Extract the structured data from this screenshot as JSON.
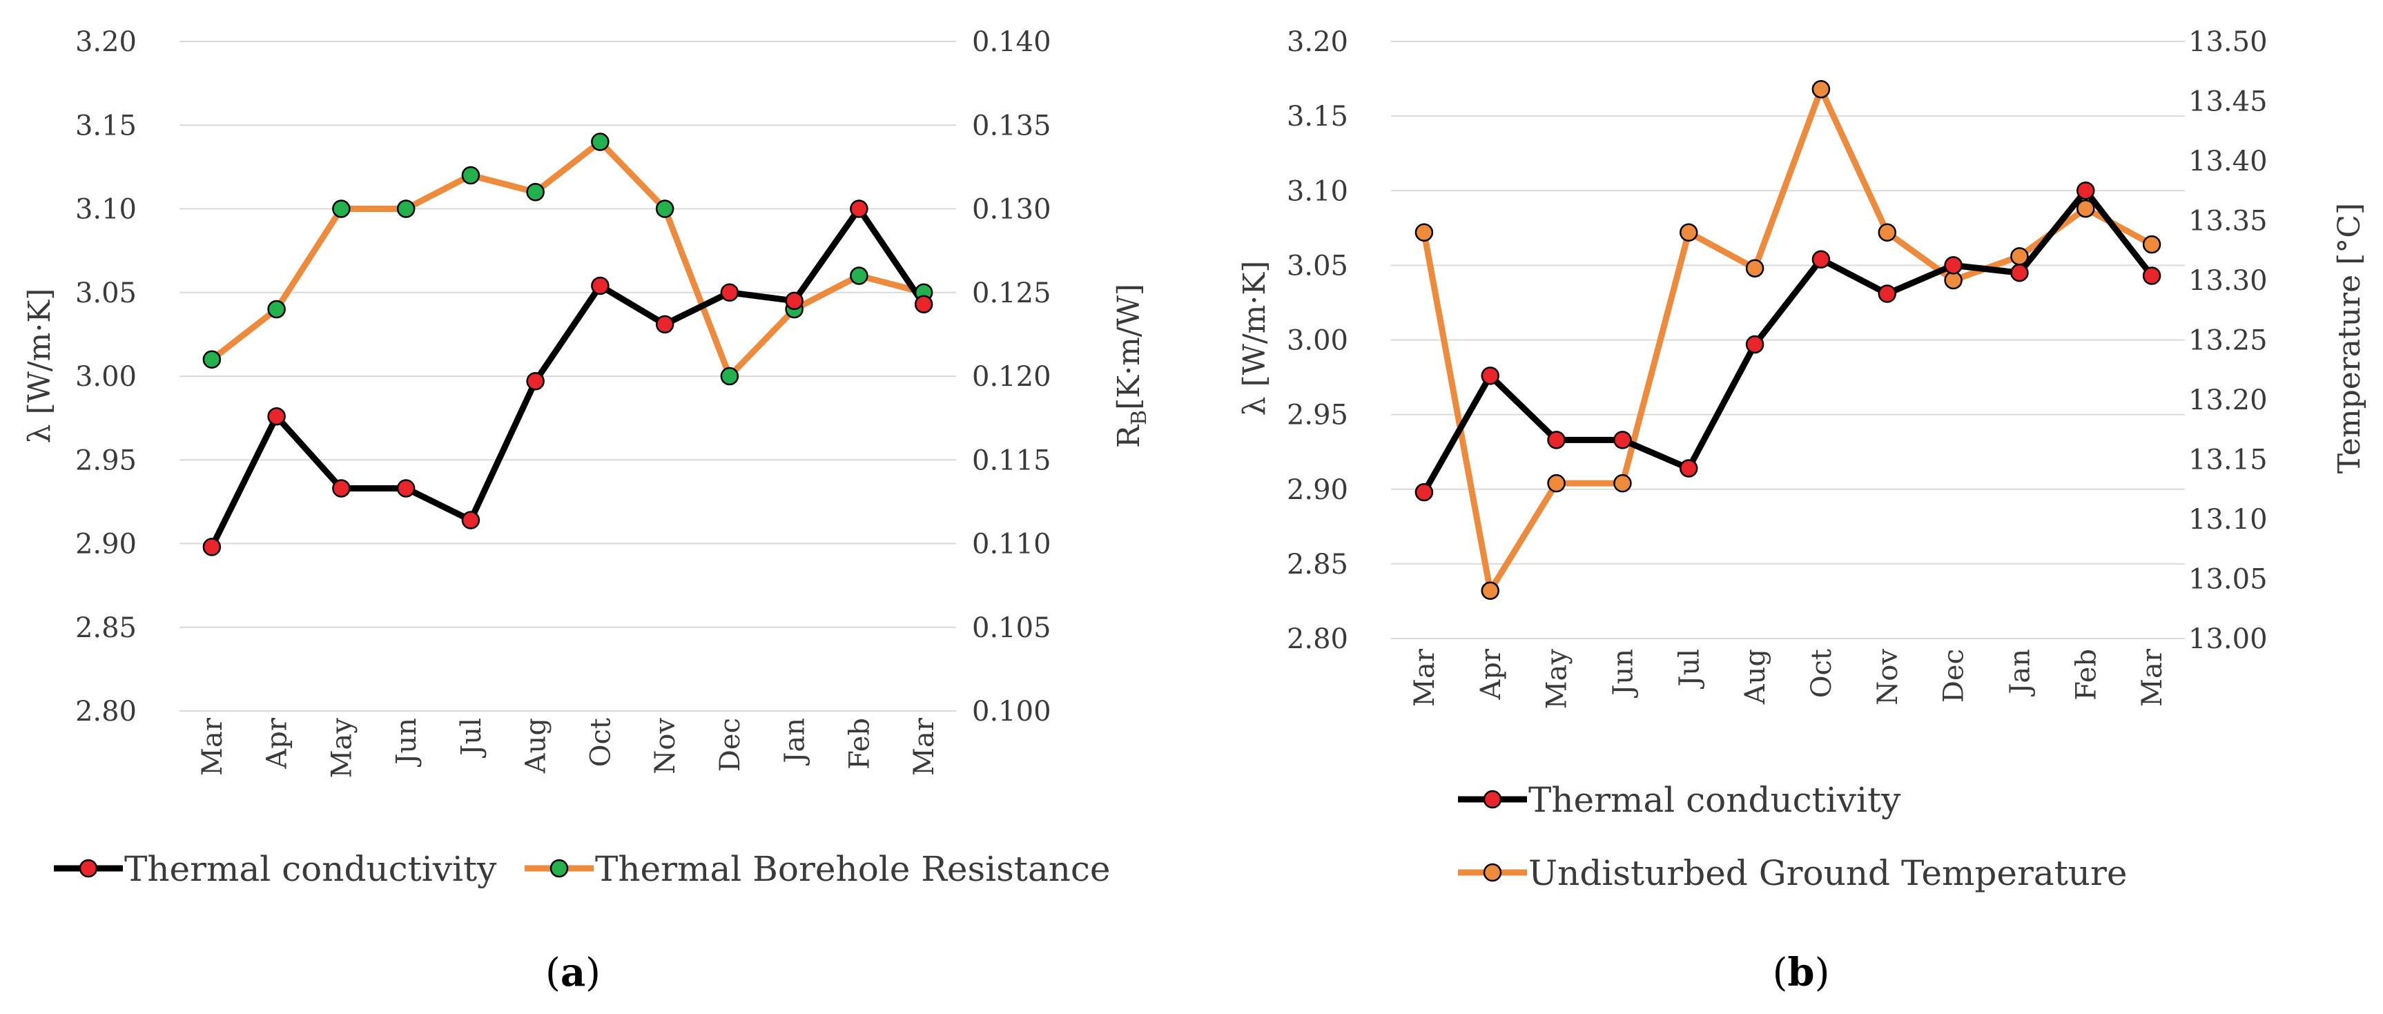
{
  "chart_data": [
    {
      "type": "line",
      "id": "a",
      "caption": "(a)",
      "caption_parts": {
        "open": "(",
        "letter": "a",
        "close": ")"
      },
      "categories": [
        "Mar",
        "Apr",
        "May",
        "Jun",
        "Jul",
        "Aug",
        "Oct",
        "Nov",
        "Dec",
        "Jan",
        "Feb",
        "Mar"
      ],
      "ylabel": "λ [W/m·K]",
      "ylim": [
        2.8,
        3.2
      ],
      "yticks": [
        "2.80",
        "2.85",
        "2.90",
        "2.95",
        "3.00",
        "3.05",
        "3.10",
        "3.15",
        "3.20"
      ],
      "y2label_parts": {
        "main": "R",
        "sub": "B",
        "rest": "[K·m/W]"
      },
      "y2lim": [
        0.1,
        0.14
      ],
      "y2ticks": [
        "0.100",
        "0.105",
        "0.110",
        "0.115",
        "0.120",
        "0.125",
        "0.130",
        "0.135",
        "0.140"
      ],
      "grid": true,
      "legend_position": "bottom",
      "series": [
        {
          "name": "Thermal conductivity",
          "axis": "left",
          "line_color": "#000000",
          "marker_color": "#e8252a",
          "values": [
            2.898,
            2.976,
            2.933,
            2.933,
            2.914,
            2.997,
            3.054,
            3.031,
            3.05,
            3.045,
            3.1,
            3.043
          ]
        },
        {
          "name": "Thermal Borehole Resistance",
          "axis": "right",
          "line_color": "#ee8a3c",
          "marker_color": "#22b14c",
          "values": [
            0.121,
            0.124,
            0.13,
            0.13,
            0.132,
            0.131,
            0.134,
            0.13,
            0.12,
            0.124,
            0.126,
            0.125
          ]
        }
      ]
    },
    {
      "type": "line",
      "id": "b",
      "caption": "(b)",
      "caption_parts": {
        "open": "(",
        "letter": "b",
        "close": ")"
      },
      "categories": [
        "Mar",
        "Apr",
        "May",
        "Jun",
        "Jul",
        "Aug",
        "Oct",
        "Nov",
        "Dec",
        "Jan",
        "Feb",
        "Mar"
      ],
      "ylabel": "λ [W/m·K]",
      "ylim": [
        2.8,
        3.2
      ],
      "yticks": [
        "2.80",
        "2.85",
        "2.90",
        "2.95",
        "3.00",
        "3.05",
        "3.10",
        "3.15",
        "3.20"
      ],
      "y2label": "Temperature [°C]",
      "y2lim": [
        13.0,
        13.5
      ],
      "y2ticks": [
        "13.00",
        "13.05",
        "13.10",
        "13.15",
        "13.20",
        "13.25",
        "13.30",
        "13.35",
        "13.40",
        "13.45",
        "13.50"
      ],
      "grid": true,
      "legend_position": "bottom",
      "series": [
        {
          "name": "Thermal conductivity",
          "axis": "left",
          "line_color": "#000000",
          "marker_color": "#e8252a",
          "values": [
            2.898,
            2.976,
            2.933,
            2.933,
            2.914,
            2.997,
            3.054,
            3.031,
            3.05,
            3.045,
            3.1,
            3.043
          ]
        },
        {
          "name": "Undisturbed Ground Temperature",
          "axis": "right",
          "line_color": "#ee8a3c",
          "marker_color": "#ee8a3c",
          "values": [
            13.34,
            13.04,
            13.13,
            13.13,
            13.34,
            13.31,
            13.46,
            13.34,
            13.3,
            13.32,
            13.36,
            13.33
          ]
        }
      ]
    }
  ]
}
